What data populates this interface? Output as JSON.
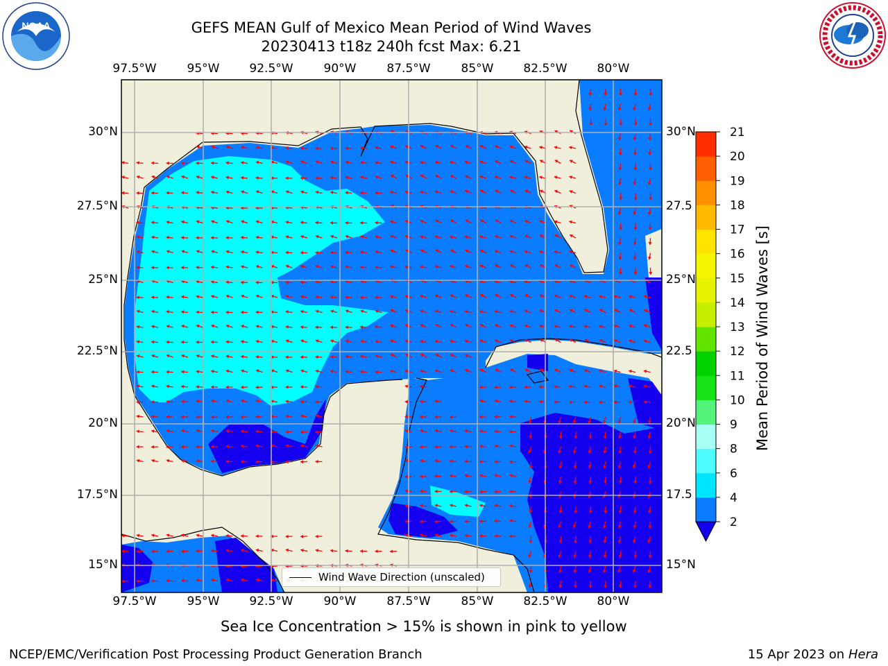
{
  "titles": {
    "line1": "GEFS MEAN Gulf of Mexico Mean Period of Wind Waves",
    "line2": "20230413 t18z 240h fcst   Max: 6.21"
  },
  "axes": {
    "lon_labels": [
      "97.5°W",
      "95°W",
      "92.5°W",
      "90°W",
      "87.5°W",
      "85°W",
      "82.5°W",
      "80°W"
    ],
    "lat_labels": [
      "30°N",
      "27.5°N",
      "25°N",
      "22.5°N",
      "20°N",
      "17.5°N",
      "15°N"
    ],
    "lat_labels_right": [
      "30°N",
      "27.5",
      "25°N",
      "22.5",
      "20°N",
      "17.5",
      "15°N"
    ]
  },
  "legend": {
    "label": "Wind Wave Direction (unscaled)"
  },
  "colorbar": {
    "title": "Mean Period of Wind Waves [s]",
    "ticks": [
      "2",
      "4",
      "6",
      "8",
      "9",
      "10",
      "11",
      "12",
      "13",
      "14",
      "15",
      "16",
      "17",
      "18",
      "19",
      "20",
      "21"
    ],
    "colors": [
      "#0a7cff",
      "#00e5ff",
      "#4dfcff",
      "#a8fff4",
      "#53f27a",
      "#17e217",
      "#00d100",
      "#62e300",
      "#c6ef00",
      "#e6f300",
      "#f5f700",
      "#ffe400",
      "#ffbb00",
      "#ff9100",
      "#ff5f00",
      "#ff2d00"
    ],
    "under_color": "#1400ee"
  },
  "colors": {
    "land": "#efefdc",
    "period_2_4": "#0a7cff",
    "period_4_6": "#00ffff",
    "period_under_2": "#1400ee",
    "arrow": "#ff0000",
    "grid": "#b0b0b0"
  },
  "footer": {
    "sea_ice": "Sea Ice Concentration > 15% is shown in pink to yellow",
    "credit": "NCEP/EMC/Verification Post Processing Product Generation Branch",
    "date": "15 Apr 2023 on ",
    "machine": "Hera"
  },
  "logos": {
    "left_icon": "noaa-logo-icon",
    "left_text": "NOAA",
    "right_icon": "nws-logo-icon"
  }
}
